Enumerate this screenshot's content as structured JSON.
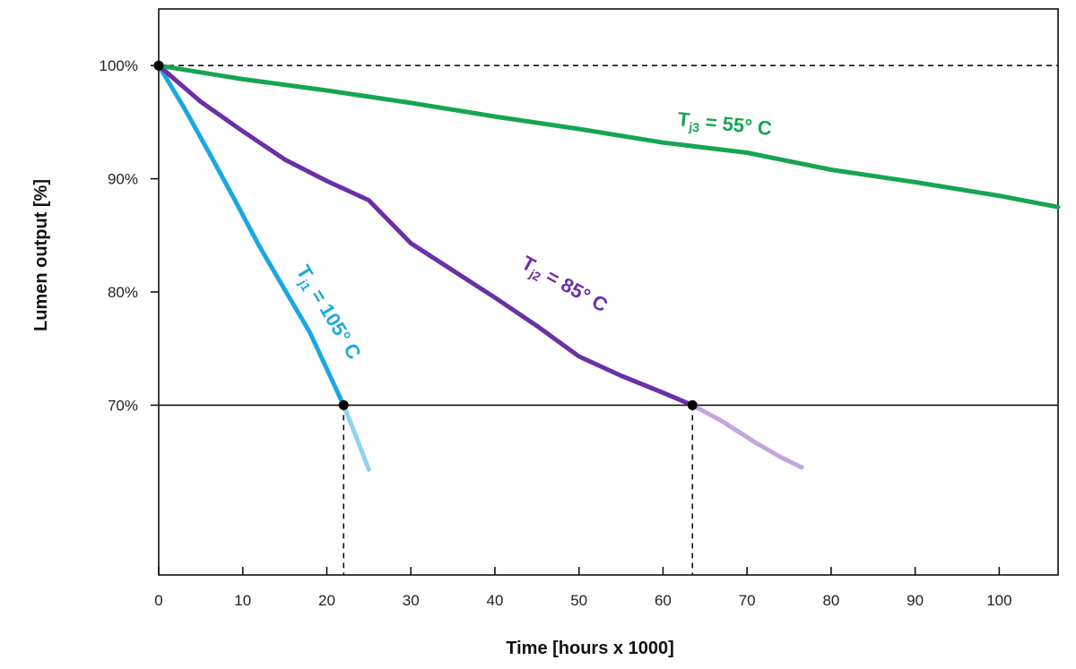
{
  "chart_data": {
    "type": "line",
    "title": "",
    "xlabel": "Time [hours x 1000]",
    "ylabel": "Lumen output [%]",
    "xlim": [
      0,
      107
    ],
    "ylim": [
      55,
      105
    ],
    "x_ticks": [
      0,
      10,
      20,
      30,
      40,
      50,
      60,
      70,
      80,
      90,
      100
    ],
    "x_tick_labels": [
      "0",
      "10",
      "20",
      "30",
      "40",
      "50",
      "60",
      "70",
      "80",
      "90",
      "100"
    ],
    "y_ticks": [
      100,
      90,
      80,
      70
    ],
    "y_tick_labels": [
      "100%",
      "90%",
      "80%",
      "70%"
    ],
    "grid": false,
    "reference_lines": [
      {
        "y": 100,
        "style": "dashed"
      },
      {
        "y": 70,
        "style": "solid"
      }
    ],
    "markers": [
      {
        "x": 0,
        "y": 100
      },
      {
        "x": 22,
        "y": 70
      },
      {
        "x": 63.5,
        "y": 70
      }
    ],
    "drop_lines": [
      {
        "x": 22,
        "y": 70
      },
      {
        "x": 63.5,
        "y": 70
      }
    ],
    "series": [
      {
        "label_main": "T",
        "label_sub": "j1",
        "label_rest": " = 105° C",
        "color": "#1BA8E0",
        "extrapolated_color": "#8FD3F0",
        "x": [
          0,
          3,
          6,
          9,
          12,
          15,
          18,
          20,
          22
        ],
        "y": [
          100,
          96.3,
          92.3,
          88.2,
          84.0,
          80.2,
          76.4,
          73.2,
          70.0
        ],
        "extrapolated_x": [
          22,
          23.5,
          25
        ],
        "extrapolated_y": [
          70,
          67.2,
          64.3
        ]
      },
      {
        "label_main": "T",
        "label_sub": "j2",
        "label_rest": " = 85° C",
        "color": "#6B2FA6",
        "extrapolated_color": "#C3A6DC",
        "x": [
          0,
          5,
          10,
          15,
          20,
          25,
          30,
          35,
          40,
          45,
          50,
          55,
          60,
          63.5
        ],
        "y": [
          100,
          96.8,
          94.2,
          91.7,
          89.8,
          88.1,
          84.3,
          81.9,
          79.5,
          77.0,
          74.3,
          72.6,
          71.1,
          70.0
        ],
        "extrapolated_x": [
          63.5,
          67,
          71,
          74,
          76.5
        ],
        "extrapolated_y": [
          70,
          68.6,
          66.7,
          65.4,
          64.5
        ]
      },
      {
        "label_main": "T",
        "label_sub": "j3",
        "label_rest": " = 55° C",
        "color": "#16A550",
        "x": [
          0,
          10,
          20,
          30,
          40,
          50,
          60,
          70,
          80,
          90,
          100,
          107
        ],
        "y": [
          100,
          98.8,
          97.8,
          96.7,
          95.5,
          94.4,
          93.2,
          92.3,
          90.8,
          89.7,
          88.5,
          87.5
        ]
      }
    ]
  }
}
